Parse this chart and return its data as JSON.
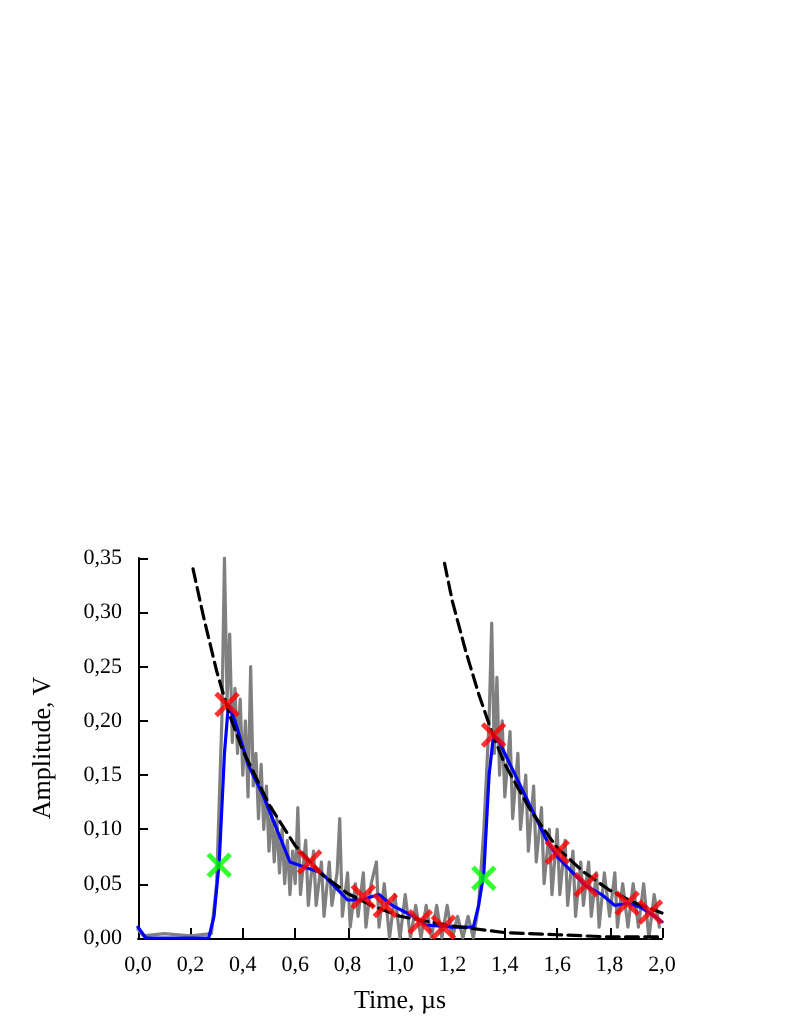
{
  "chart_data": {
    "type": "line",
    "xlabel": "Time, µs",
    "ylabel": "Amplitude, V",
    "xlim": [
      0,
      2
    ],
    "ylim": [
      0,
      0.35
    ],
    "xticks": [
      {
        "value": 0,
        "label": "0,0"
      },
      {
        "value": 0.2,
        "label": "0,2"
      },
      {
        "value": 0.4,
        "label": "0,4"
      },
      {
        "value": 0.6,
        "label": "0,6"
      },
      {
        "value": 0.8,
        "label": "0,8"
      },
      {
        "value": 1,
        "label": "1,0"
      },
      {
        "value": 1.2,
        "label": "1,2"
      },
      {
        "value": 1.4,
        "label": "1,4"
      },
      {
        "value": 1.6,
        "label": "1,6"
      },
      {
        "value": 1.8,
        "label": "1,8"
      },
      {
        "value": 2,
        "label": "2,0"
      }
    ],
    "yticks": [
      {
        "value": 0,
        "label": "0,00"
      },
      {
        "value": 0.05,
        "label": "0,05"
      },
      {
        "value": 0.1,
        "label": "0,10"
      },
      {
        "value": 0.15,
        "label": "0,15"
      },
      {
        "value": 0.2,
        "label": "0,20"
      },
      {
        "value": 0.25,
        "label": "0,25"
      },
      {
        "value": 0.3,
        "label": "0,30"
      },
      {
        "value": 0.35,
        "label": "0,35"
      }
    ],
    "grid": false,
    "series": [
      {
        "color": "#808080",
        "marker": "none",
        "line_style": "solid",
        "x": [
          0,
          0.02,
          0.1,
          0.2,
          0.28,
          0.3,
          0.32,
          0.33,
          0.34,
          0.35,
          0.36,
          0.37,
          0.38,
          0.39,
          0.4,
          0.41,
          0.42,
          0.43,
          0.44,
          0.45,
          0.46,
          0.47,
          0.48,
          0.49,
          0.5,
          0.51,
          0.52,
          0.53,
          0.54,
          0.55,
          0.56,
          0.57,
          0.58,
          0.59,
          0.6,
          0.61,
          0.62,
          0.64,
          0.65,
          0.67,
          0.68,
          0.7,
          0.71,
          0.73,
          0.74,
          0.76,
          0.77,
          0.78,
          0.8,
          0.81,
          0.83,
          0.84,
          0.86,
          0.87,
          0.89,
          0.91,
          0.92,
          0.94,
          0.96,
          0.98,
          1,
          1.02,
          1.04,
          1.06,
          1.08,
          1.1,
          1.12,
          1.14,
          1.16,
          1.18,
          1.2,
          1.22,
          1.24,
          1.26,
          1.28,
          1.3,
          1.32,
          1.34,
          1.35,
          1.36,
          1.37,
          1.38,
          1.39,
          1.4,
          1.42,
          1.43,
          1.45,
          1.46,
          1.48,
          1.49,
          1.51,
          1.52,
          1.54,
          1.55,
          1.57,
          1.58,
          1.6,
          1.61,
          1.63,
          1.64,
          1.66,
          1.67,
          1.69,
          1.7,
          1.72,
          1.73,
          1.75,
          1.76,
          1.78,
          1.8,
          1.82,
          1.83,
          1.85,
          1.87,
          1.89,
          1.91,
          1.93,
          1.95,
          1.97,
          1.99
        ],
        "values": [
          0.008,
          0.002,
          0.004,
          0.002,
          0.004,
          0.05,
          0.2,
          0.35,
          0.22,
          0.28,
          0.18,
          0.23,
          0.17,
          0.22,
          0.15,
          0.2,
          0.13,
          0.25,
          0.14,
          0.17,
          0.11,
          0.16,
          0.1,
          0.14,
          0.08,
          0.12,
          0.07,
          0.11,
          0.06,
          0.1,
          0.05,
          0.09,
          0.04,
          0.08,
          0.05,
          0.12,
          0.04,
          0.09,
          0.03,
          0.08,
          0.03,
          0.07,
          0.02,
          0.07,
          0.03,
          0.06,
          0.11,
          0.02,
          0.06,
          0.01,
          0.05,
          0.02,
          0.06,
          0.01,
          0.05,
          0.07,
          0.01,
          0.05,
          0,
          0.04,
          0,
          0.04,
          0,
          0.03,
          0,
          0.03,
          0,
          0.03,
          0,
          0.03,
          0,
          0.02,
          0,
          0.02,
          0,
          0.03,
          0.1,
          0.2,
          0.29,
          0.17,
          0.24,
          0.15,
          0.2,
          0.13,
          0.19,
          0.11,
          0.17,
          0.1,
          0.15,
          0.08,
          0.14,
          0.07,
          0.12,
          0.05,
          0.1,
          0.04,
          0.1,
          0.04,
          0.09,
          0.03,
          0.08,
          0.02,
          0.07,
          0.03,
          0.07,
          0.02,
          0.06,
          0.01,
          0.06,
          0.02,
          0.06,
          0.01,
          0.05,
          0.01,
          0.05,
          0.01,
          0.05,
          0,
          0.04,
          0.01
        ]
      },
      {
        "color": "#0000ff",
        "marker": "none",
        "line_style": "solid",
        "x": [
          0,
          0.03,
          0.27,
          0.29,
          0.31,
          0.33,
          0.345,
          0.37,
          0.42,
          0.48,
          0.53,
          0.58,
          0.64,
          0.7,
          0.76,
          0.8,
          0.85,
          0.92,
          0.97,
          1.05,
          1.1,
          1.2,
          1.28,
          1.3,
          1.32,
          1.34,
          1.357,
          1.38,
          1.44,
          1.5,
          1.56,
          1.6,
          1.66,
          1.71,
          1.77,
          1.82,
          1.87,
          1.92,
          1.96,
          2
        ],
        "values": [
          0.01,
          0,
          0,
          0.02,
          0.07,
          0.17,
          0.215,
          0.2,
          0.16,
          0.13,
          0.1,
          0.07,
          0.065,
          0.06,
          0.045,
          0.035,
          0.035,
          0.04,
          0.03,
          0.02,
          0.012,
          0.01,
          0.01,
          0.03,
          0.06,
          0.15,
          0.187,
          0.18,
          0.15,
          0.12,
          0.09,
          0.075,
          0.06,
          0.048,
          0.04,
          0.03,
          0.032,
          0.028,
          0.022,
          0.015
        ]
      },
      {
        "color": "#000000",
        "marker": "none",
        "line_style": "dashed",
        "x": [
          0.21,
          0.25,
          0.3,
          0.35,
          0.4,
          0.5,
          0.6,
          0.7,
          0.8,
          0.9,
          1,
          1.2,
          1.4,
          1.6,
          1.8,
          2
        ],
        "values": [
          0.34,
          0.296,
          0.246,
          0.205,
          0.173,
          0.123,
          0.085,
          0.059,
          0.041,
          0.029,
          0.02,
          0.011,
          0.005,
          0.003,
          0.001,
          0.001
        ]
      },
      {
        "color": "#000000",
        "marker": "none",
        "line_style": "dashed",
        "x": [
          1.17,
          1.2,
          1.25,
          1.3,
          1.35,
          1.4,
          1.5,
          1.6,
          1.7,
          1.8,
          1.9,
          2
        ],
        "values": [
          0.345,
          0.31,
          0.265,
          0.225,
          0.19,
          0.16,
          0.117,
          0.083,
          0.061,
          0.044,
          0.032,
          0.023
        ]
      },
      {
        "type": "scatter",
        "color": "#ff0000",
        "marker": "cross",
        "x": [
          0.34,
          0.655,
          0.86,
          0.944,
          1.077,
          1.166,
          1.357,
          1.6,
          1.71,
          1.867,
          1.956
        ],
        "values": [
          0.215,
          0.07,
          0.038,
          0.03,
          0.015,
          0.01,
          0.187,
          0.079,
          0.049,
          0.032,
          0.024
        ]
      },
      {
        "type": "scatter",
        "color": "#00ff00",
        "marker": "cross",
        "x": [
          0.31,
          1.32
        ],
        "values": [
          0.067,
          0.055
        ]
      }
    ]
  }
}
